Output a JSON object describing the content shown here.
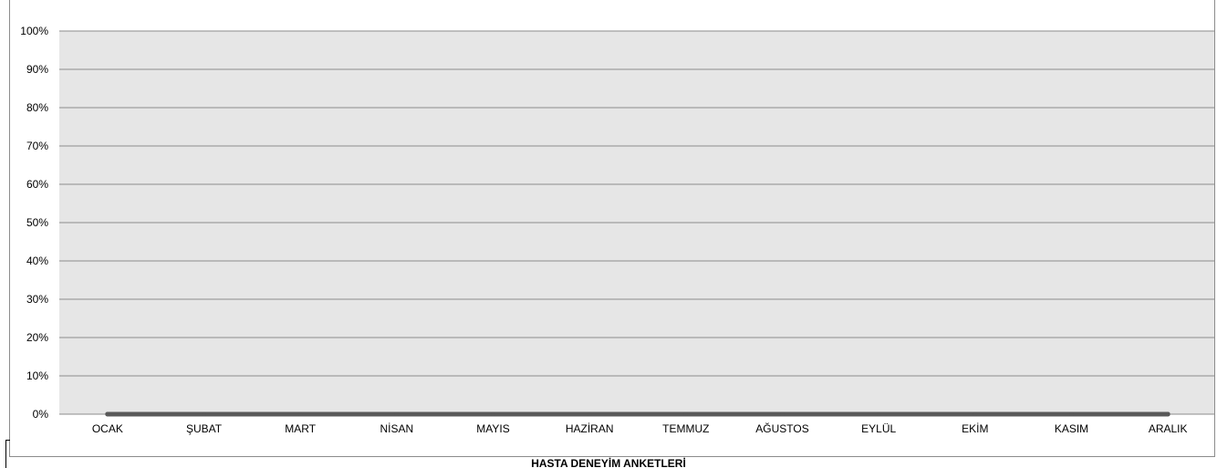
{
  "chart_data": {
    "type": "line",
    "title": "HASTA DENEYİM ANKETLERİ",
    "categories": [
      "OCAK",
      "ŞUBAT",
      "MART",
      "NİSAN",
      "MAYIS",
      "HAZİRAN",
      "TEMMUZ",
      "AĞUSTOS",
      "EYLÜL",
      "EKİM",
      "KASIM",
      "ARALIK"
    ],
    "series": [
      {
        "values": [
          0,
          0,
          0,
          0,
          0,
          0,
          0,
          0,
          0,
          0,
          0,
          0
        ],
        "color": "#595959"
      }
    ],
    "ylim": [
      0,
      1
    ],
    "yticks": [
      "0%",
      "10%",
      "20%",
      "30%",
      "40%",
      "50%",
      "60%",
      "70%",
      "80%",
      "90%",
      "100%"
    ],
    "xlabel": "",
    "ylabel": "",
    "grid": true,
    "legend": "none",
    "colors": {
      "plot_background": "#e6e6e6",
      "gridline": "#8c8c8c",
      "frame": "#8c8c8c"
    }
  }
}
